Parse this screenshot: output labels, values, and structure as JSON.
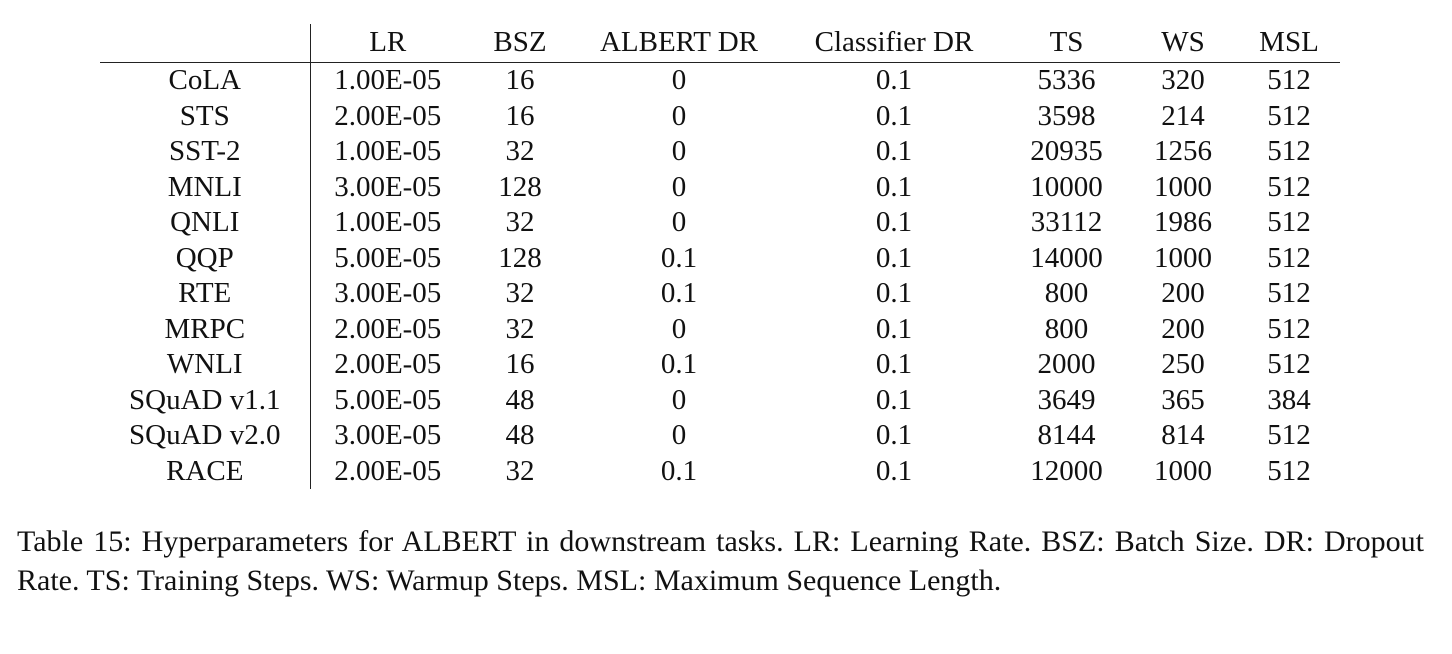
{
  "table": {
    "columns": [
      "",
      "LR",
      "BSZ",
      "ALBERT DR",
      "Classifier DR",
      "TS",
      "WS",
      "MSL"
    ],
    "rows": [
      {
        "task": "CoLA",
        "values": [
          "1.00E-05",
          "16",
          "0",
          "0.1",
          "5336",
          "320",
          "512"
        ]
      },
      {
        "task": "STS",
        "values": [
          "2.00E-05",
          "16",
          "0",
          "0.1",
          "3598",
          "214",
          "512"
        ]
      },
      {
        "task": "SST-2",
        "values": [
          "1.00E-05",
          "32",
          "0",
          "0.1",
          "20935",
          "1256",
          "512"
        ]
      },
      {
        "task": "MNLI",
        "values": [
          "3.00E-05",
          "128",
          "0",
          "0.1",
          "10000",
          "1000",
          "512"
        ]
      },
      {
        "task": "QNLI",
        "values": [
          "1.00E-05",
          "32",
          "0",
          "0.1",
          "33112",
          "1986",
          "512"
        ]
      },
      {
        "task": "QQP",
        "values": [
          "5.00E-05",
          "128",
          "0.1",
          "0.1",
          "14000",
          "1000",
          "512"
        ]
      },
      {
        "task": "RTE",
        "values": [
          "3.00E-05",
          "32",
          "0.1",
          "0.1",
          "800",
          "200",
          "512"
        ]
      },
      {
        "task": "MRPC",
        "values": [
          "2.00E-05",
          "32",
          "0",
          "0.1",
          "800",
          "200",
          "512"
        ]
      },
      {
        "task": "WNLI",
        "values": [
          "2.00E-05",
          "16",
          "0.1",
          "0.1",
          "2000",
          "250",
          "512"
        ]
      },
      {
        "task": "SQuAD v1.1",
        "values": [
          "5.00E-05",
          "48",
          "0",
          "0.1",
          "3649",
          "365",
          "384"
        ]
      },
      {
        "task": "SQuAD v2.0",
        "values": [
          "3.00E-05",
          "48",
          "0",
          "0.1",
          "8144",
          "814",
          "512"
        ]
      },
      {
        "task": "RACE",
        "values": [
          "2.00E-05",
          "32",
          "0.1",
          "0.1",
          "12000",
          "1000",
          "512"
        ]
      }
    ]
  },
  "caption": "Table 15: Hyperparameters for ALBERT in downstream tasks. LR: Learning Rate. BSZ: Batch Size. DR: Dropout Rate. TS: Training Steps. WS: Warmup Steps. MSL: Maximum Sequence Length."
}
